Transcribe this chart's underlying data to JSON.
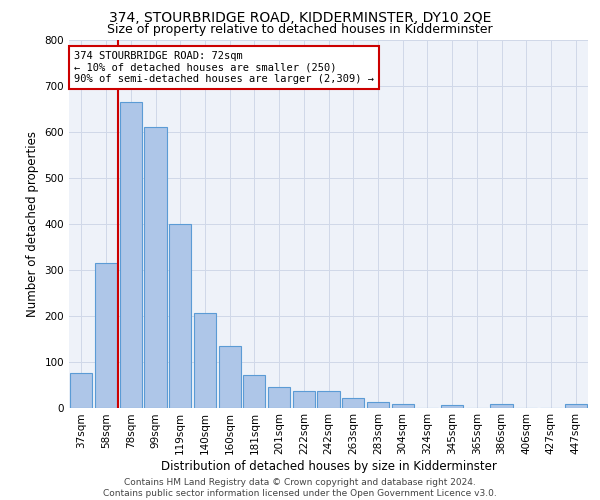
{
  "title": "374, STOURBRIDGE ROAD, KIDDERMINSTER, DY10 2QE",
  "subtitle": "Size of property relative to detached houses in Kidderminster",
  "xlabel": "Distribution of detached houses by size in Kidderminster",
  "ylabel": "Number of detached properties",
  "categories": [
    "37sqm",
    "58sqm",
    "78sqm",
    "99sqm",
    "119sqm",
    "140sqm",
    "160sqm",
    "181sqm",
    "201sqm",
    "222sqm",
    "242sqm",
    "263sqm",
    "283sqm",
    "304sqm",
    "324sqm",
    "345sqm",
    "365sqm",
    "386sqm",
    "406sqm",
    "427sqm",
    "447sqm"
  ],
  "values": [
    75,
    315,
    665,
    610,
    400,
    205,
    133,
    70,
    45,
    35,
    35,
    20,
    12,
    8,
    0,
    5,
    0,
    8,
    0,
    0,
    7
  ],
  "bar_color": "#aec6e8",
  "bar_edgecolor": "#5b9bd5",
  "bar_linewidth": 0.8,
  "vline_x": 1.5,
  "vline_color": "#cc0000",
  "vline_linewidth": 1.5,
  "annotation_lines": [
    "374 STOURBRIDGE ROAD: 72sqm",
    "← 10% of detached houses are smaller (250)",
    "90% of semi-detached houses are larger (2,309) →"
  ],
  "annotation_box_edgecolor": "#cc0000",
  "annotation_text_fontsize": 7.5,
  "ylim": [
    0,
    800
  ],
  "yticks": [
    0,
    100,
    200,
    300,
    400,
    500,
    600,
    700,
    800
  ],
  "grid_color": "#d0d8e8",
  "bg_color": "#eef2f9",
  "footer": "Contains HM Land Registry data © Crown copyright and database right 2024.\nContains public sector information licensed under the Open Government Licence v3.0.",
  "title_fontsize": 10,
  "subtitle_fontsize": 9,
  "xlabel_fontsize": 8.5,
  "ylabel_fontsize": 8.5,
  "tick_fontsize": 7.5,
  "footer_fontsize": 6.5
}
